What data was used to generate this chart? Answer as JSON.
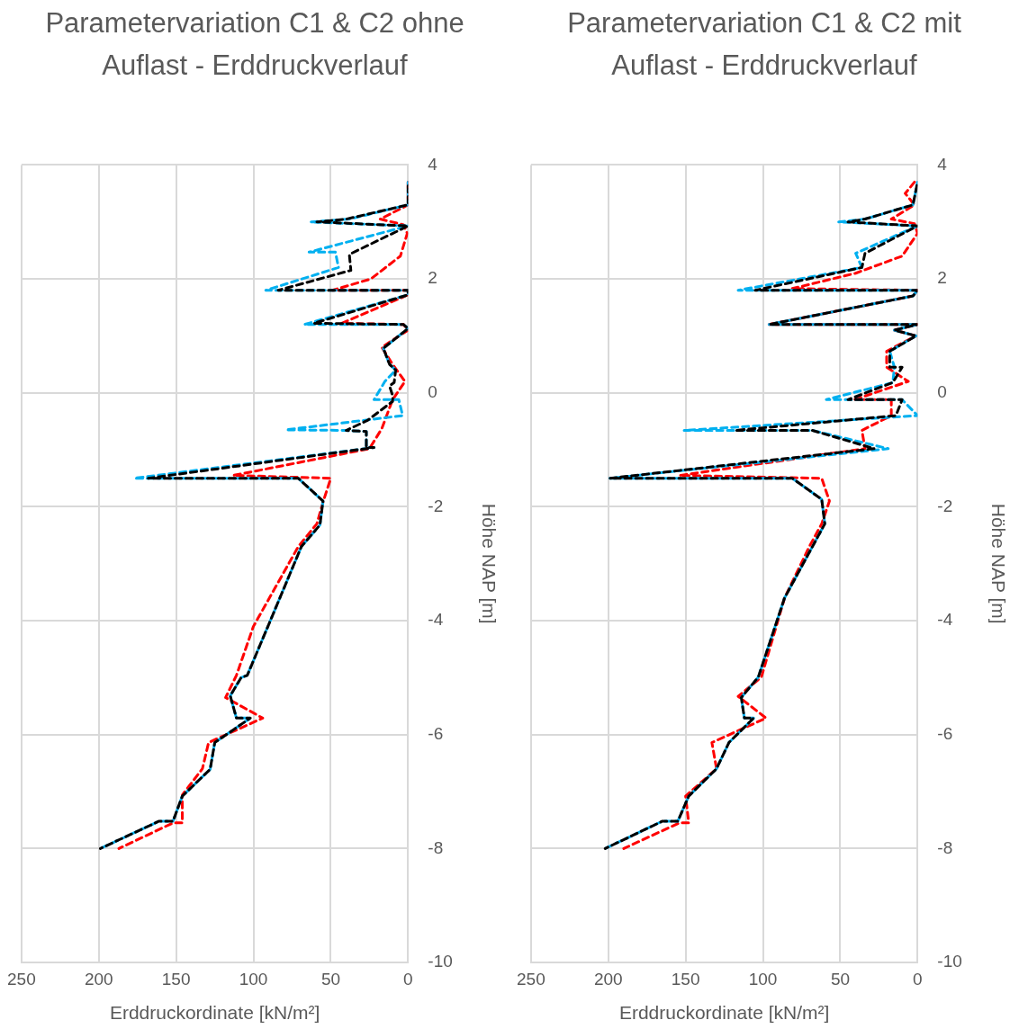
{
  "chart_data": [
    {
      "type": "line",
      "title": "Parametervariation C1 & C2 ohne Auflast - Erddruckverlauf",
      "xlabel": "Erddruckordinate [kN/m²]",
      "ylabel": "Höhe NAP [m]",
      "xlim": [
        250,
        0
      ],
      "xticks": [
        250,
        200,
        150,
        100,
        50,
        0
      ],
      "ylim": [
        -10,
        4
      ],
      "yticks": [
        -10,
        -8,
        -6,
        -4,
        -2,
        0,
        2,
        4
      ],
      "grid": true,
      "marker": "none",
      "line_style": "dashed",
      "series": [
        {
          "color": "#ff0000",
          "x": [
            0,
            0,
            18,
            3,
            0.5,
            5,
            24,
            49,
            0,
            0,
            43,
            3,
            0,
            17,
            10,
            2,
            10,
            17,
            25,
            113,
            50,
            55,
            59,
            71,
            100,
            111,
            118,
            94,
            129,
            133,
            146,
            146,
            152,
            187
          ],
          "values": [
            3.7,
            3.3,
            3.05,
            2.95,
            2.8,
            2.4,
            2.0,
            1.8,
            1.8,
            1.72,
            1.22,
            1.2,
            1.1,
            0.8,
            0.5,
            0.2,
            -0.12,
            -0.63,
            -0.98,
            -1.45,
            -1.5,
            -1.92,
            -2.3,
            -2.7,
            -4.1,
            -4.96,
            -5.35,
            -5.71,
            -6.14,
            -6.6,
            -7.06,
            -7.55,
            -7.55,
            -8.0
          ]
        },
        {
          "color": "#00b0f0",
          "x": [
            0,
            0,
            38,
            63,
            0,
            64,
            47,
            45,
            92,
            0,
            0,
            67,
            3,
            0,
            16,
            12,
            8,
            15,
            22,
            6,
            3.5,
            79,
            40,
            27,
            27,
            22,
            177,
            71,
            55,
            57,
            69,
            90,
            104,
            108,
            115,
            111,
            102,
            125,
            128,
            146,
            152,
            161,
            199
          ],
          "values": [
            3.7,
            3.3,
            3.05,
            3.0,
            2.93,
            2.47,
            2.47,
            2.2,
            1.8,
            1.8,
            1.72,
            1.2,
            1.2,
            1.13,
            0.78,
            0.5,
            0.4,
            0.2,
            -0.12,
            -0.12,
            -0.4,
            -0.65,
            -0.66,
            -0.68,
            -0.96,
            -0.96,
            -1.5,
            -1.5,
            -1.9,
            -2.32,
            -2.7,
            -4.06,
            -4.96,
            -5.0,
            -5.32,
            -5.71,
            -5.71,
            -6.14,
            -6.61,
            -7.08,
            -7.52,
            -7.52,
            -8.0
          ]
        },
        {
          "color": "#000000",
          "x": [
            0,
            0,
            40,
            59,
            0,
            38,
            37,
            84,
            0,
            0,
            61,
            3,
            0,
            16,
            12,
            8,
            9,
            12,
            10,
            10,
            26,
            40,
            27,
            27,
            22,
            168,
            71,
            55,
            57,
            69,
            90,
            104,
            108,
            115,
            111,
            102,
            125,
            128,
            146,
            152,
            161,
            199
          ],
          "values": [
            3.7,
            3.3,
            3.05,
            3.0,
            2.93,
            2.43,
            2.15,
            1.8,
            1.8,
            1.72,
            1.22,
            1.2,
            1.13,
            0.78,
            0.5,
            0.4,
            0.18,
            0.12,
            -0.05,
            -0.15,
            -0.48,
            -0.66,
            -0.68,
            -0.96,
            -0.96,
            -1.5,
            -1.5,
            -1.9,
            -2.32,
            -2.7,
            -4.06,
            -4.96,
            -5.0,
            -5.32,
            -5.71,
            -5.71,
            -6.14,
            -6.61,
            -7.08,
            -7.52,
            -7.52,
            -8.0
          ]
        }
      ]
    },
    {
      "type": "line",
      "title": "Parametervariation C1 & C2 mit Auflast - Erddruckverlauf",
      "xlabel": "Erddruckordinate [kN/m²]",
      "ylabel": "Höhe NAP [m]",
      "xlim": [
        250,
        0
      ],
      "xticks": [
        250,
        200,
        150,
        100,
        50,
        0
      ],
      "ylim": [
        -10,
        4
      ],
      "yticks": [
        -10,
        -8,
        -6,
        -4,
        -2,
        0,
        2,
        4
      ],
      "grid": true,
      "marker": "none",
      "line_style": "dashed",
      "series": [
        {
          "color": "#ff0000",
          "x": [
            2,
            8,
            2,
            17,
            2,
            0,
            10,
            40,
            81,
            0,
            3,
            96,
            0,
            15,
            1,
            20,
            20,
            6,
            41,
            17,
            17,
            36,
            34,
            154,
            62,
            57,
            62,
            70,
            86,
            101,
            116,
            98,
            133,
            130,
            150,
            148,
            154,
            190
          ],
          "values": [
            3.7,
            3.5,
            3.3,
            3.05,
            2.97,
            2.8,
            2.4,
            2.1,
            1.83,
            1.8,
            1.7,
            1.2,
            1.2,
            1.1,
            1.0,
            0.73,
            0.45,
            0.2,
            -0.12,
            -0.12,
            -0.4,
            -0.66,
            -0.98,
            -1.45,
            -1.5,
            -1.9,
            -2.3,
            -2.7,
            -3.6,
            -4.99,
            -5.33,
            -5.71,
            -6.14,
            -6.6,
            -7.08,
            -7.55,
            -7.55,
            -8.0
          ]
        },
        {
          "color": "#00b0f0",
          "x": [
            0,
            3,
            34,
            51,
            0,
            40,
            36,
            116,
            0,
            3,
            96,
            0,
            15,
            1,
            18,
            15,
            16,
            59,
            10,
            0,
            151,
            68,
            19,
            199,
            81,
            62,
            60,
            68,
            86,
            103,
            114,
            112,
            106,
            122,
            130,
            148,
            155,
            165,
            202
          ],
          "values": [
            3.7,
            3.3,
            3.05,
            3.0,
            2.93,
            2.45,
            2.2,
            1.8,
            1.8,
            1.7,
            1.2,
            1.2,
            1.1,
            1.0,
            0.73,
            0.45,
            0.18,
            -0.12,
            -0.12,
            -0.4,
            -0.66,
            -0.66,
            -0.98,
            -1.5,
            -1.5,
            -1.87,
            -2.3,
            -2.7,
            -3.6,
            -4.99,
            -5.35,
            -5.71,
            -5.71,
            -6.14,
            -6.6,
            -7.08,
            -7.52,
            -7.52,
            -8.0
          ]
        },
        {
          "color": "#000000",
          "x": [
            0,
            3,
            34,
            45,
            0,
            34,
            36,
            105,
            0,
            3,
            96,
            0,
            15,
            1,
            18,
            18,
            10,
            16,
            45,
            10,
            14,
            118,
            68,
            28,
            199,
            81,
            62,
            60,
            68,
            86,
            103,
            114,
            112,
            106,
            122,
            130,
            148,
            155,
            165,
            202
          ],
          "values": [
            3.7,
            3.3,
            3.05,
            3.0,
            2.93,
            2.45,
            2.2,
            1.8,
            1.8,
            1.7,
            1.2,
            1.2,
            1.1,
            1.0,
            0.73,
            0.45,
            0.45,
            0.18,
            -0.12,
            -0.12,
            -0.4,
            -0.66,
            -0.66,
            -0.98,
            -1.5,
            -1.5,
            -1.87,
            -2.3,
            -2.7,
            -3.6,
            -4.99,
            -5.35,
            -5.71,
            -5.71,
            -6.14,
            -6.6,
            -7.08,
            -7.52,
            -7.52,
            -8.0
          ]
        }
      ]
    }
  ]
}
